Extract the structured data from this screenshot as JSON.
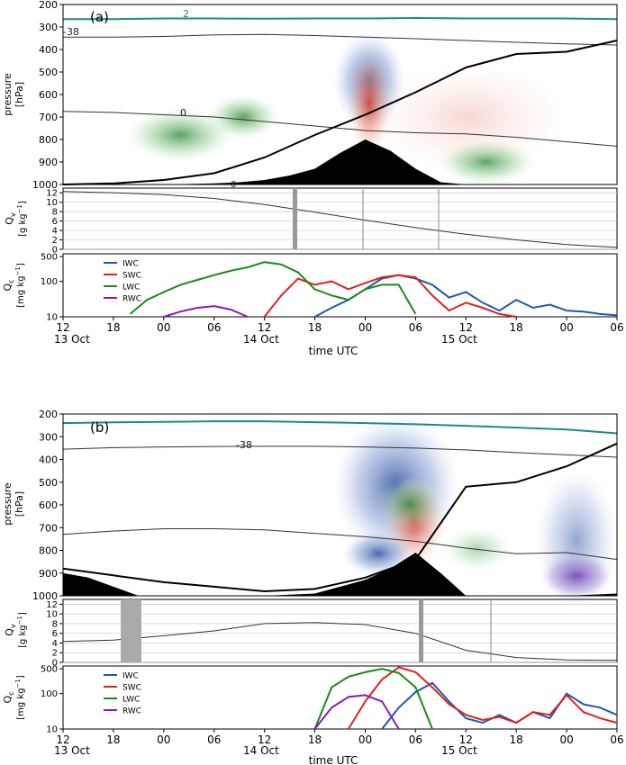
{
  "figure": {
    "panels": [
      {
        "label": "(a)",
        "time_ticks": [
          "12",
          "18",
          "00",
          "06",
          "12",
          "18",
          "00",
          "06",
          "12",
          "18",
          "00",
          "06"
        ],
        "date_labels": [
          "13 Oct",
          "14 Oct",
          "15 Oct"
        ],
        "time_label": "time UTC"
      },
      {
        "label": "(b)",
        "time_ticks": [
          "12",
          "18",
          "00",
          "06",
          "12",
          "18",
          "00",
          "06",
          "12",
          "18",
          "00",
          "06"
        ],
        "date_labels": [
          "13 Oct",
          "14 Oct",
          "15 Oct"
        ],
        "time_label": "time UTC"
      }
    ]
  },
  "chart_data": [
    {
      "type": "area",
      "panel": "(a) pressure-time section",
      "xlabel": "time UTC",
      "ylabel": "pressure [hPa]",
      "x_ticks": [
        "12",
        "18",
        "00",
        "06",
        "12",
        "18",
        "00",
        "06",
        "12",
        "18",
        "00",
        "06"
      ],
      "x_dates": [
        "13 Oct",
        "14 Oct",
        "15 Oct"
      ],
      "y_ticks": [
        200,
        300,
        400,
        500,
        600,
        700,
        800,
        900,
        1000
      ],
      "ylim": [
        1000,
        200
      ],
      "contour_labels": [
        "2",
        "-38",
        "0",
        "0"
      ],
      "series": [
        {
          "name": "",
          "color": "#1a8a8a",
          "x": [
            0,
            6,
            12,
            18,
            24,
            30,
            36,
            42,
            48,
            54,
            60,
            66
          ],
          "values": [
            265,
            265,
            262,
            262,
            263,
            262,
            262,
            260,
            262,
            262,
            262,
            265
          ]
        },
        {
          "name": "",
          "color": "#333333",
          "x": [
            0,
            6,
            12,
            18,
            24,
            30,
            36,
            42,
            48,
            54,
            60,
            66
          ],
          "values": [
            345,
            345,
            342,
            335,
            333,
            338,
            345,
            352,
            360,
            368,
            375,
            380
          ]
        },
        {
          "name": "",
          "color": "#333333",
          "x": [
            0,
            6,
            12,
            18,
            24,
            30,
            36,
            42,
            48,
            54,
            60,
            66
          ],
          "values": [
            675,
            680,
            690,
            700,
            720,
            740,
            760,
            770,
            775,
            790,
            810,
            830
          ]
        },
        {
          "name": "",
          "color": "#000000",
          "x": [
            0,
            6,
            12,
            18,
            24,
            30,
            36,
            42,
            48,
            54,
            60,
            66
          ],
          "values": [
            1000,
            995,
            980,
            950,
            880,
            780,
            690,
            590,
            480,
            420,
            410,
            360
          ]
        }
      ],
      "terrain": {
        "color": "#000000",
        "x": [
          0,
          12,
          18,
          21,
          24,
          27,
          30,
          33,
          36,
          39,
          42,
          45,
          48,
          54,
          60,
          66
        ],
        "values": [
          1000,
          1000,
          995,
          990,
          980,
          960,
          930,
          860,
          800,
          850,
          930,
          990,
          1000,
          1000,
          1000,
          1000
        ]
      }
    },
    {
      "type": "line",
      "panel": "(a) Qv",
      "ylabel": "Qv [g kg-1]",
      "y_ticks": [
        0,
        2,
        4,
        6,
        8,
        10,
        12
      ],
      "ylim": [
        0,
        13
      ],
      "series": [
        {
          "name": "",
          "color": "#333333",
          "x": [
            0,
            6,
            12,
            18,
            24,
            30,
            36,
            42,
            48,
            54,
            60,
            66
          ],
          "values": [
            12.3,
            12.0,
            11.6,
            10.8,
            9.5,
            7.9,
            6.2,
            4.6,
            3.2,
            2.0,
            1.0,
            0.4
          ]
        }
      ]
    },
    {
      "type": "line",
      "panel": "(a) Qc",
      "ylabel": "Qc [mg kg-1]",
      "y_scale": "log",
      "y_ticks": [
        10,
        100,
        500
      ],
      "ylim": [
        10,
        600
      ],
      "legend": [
        "IWC",
        "SWC",
        "LWC",
        "RWC"
      ],
      "legend_placement": "top-left",
      "series": [
        {
          "name": "IWC",
          "color": "#1f5aa6",
          "x": [
            30,
            32,
            34,
            36,
            38,
            40,
            42,
            44,
            46,
            48,
            50,
            52,
            54,
            56,
            58,
            60,
            62,
            64,
            66
          ],
          "values": [
            10,
            18,
            30,
            60,
            120,
            150,
            120,
            80,
            35,
            50,
            25,
            15,
            30,
            18,
            22,
            15,
            14,
            12,
            11
          ]
        },
        {
          "name": "SWC",
          "color": "#e02020",
          "x": [
            24,
            26,
            28,
            30,
            32,
            34,
            36,
            38,
            40,
            42,
            44,
            46,
            48,
            50,
            52,
            54
          ],
          "values": [
            10,
            40,
            120,
            80,
            100,
            60,
            90,
            130,
            150,
            130,
            40,
            15,
            25,
            18,
            12,
            10
          ]
        },
        {
          "name": "LWC",
          "color": "#1a8a1a",
          "x": [
            8,
            10,
            12,
            14,
            16,
            18,
            20,
            22,
            24,
            26,
            28,
            30,
            32,
            34,
            36,
            38,
            40,
            42
          ],
          "values": [
            12,
            30,
            50,
            80,
            110,
            150,
            200,
            250,
            350,
            300,
            180,
            60,
            40,
            30,
            60,
            80,
            80,
            12
          ]
        },
        {
          "name": "RWC",
          "color": "#8a1ab5",
          "x": [
            12,
            14,
            16,
            18,
            20,
            22
          ],
          "values": [
            10,
            14,
            18,
            20,
            16,
            10
          ]
        }
      ]
    },
    {
      "type": "area",
      "panel": "(b) pressure-time section",
      "xlabel": "time UTC",
      "ylabel": "pressure [hPa]",
      "x_ticks": [
        "12",
        "18",
        "00",
        "06",
        "12",
        "18",
        "00",
        "06",
        "12",
        "18",
        "00",
        "06"
      ],
      "x_dates": [
        "13 Oct",
        "14 Oct",
        "15 Oct"
      ],
      "y_ticks": [
        200,
        300,
        400,
        500,
        600,
        700,
        800,
        900,
        1000
      ],
      "ylim": [
        1000,
        200
      ],
      "contour_labels": [
        "-38"
      ],
      "series": [
        {
          "name": "",
          "color": "#1a8a8a",
          "x": [
            0,
            6,
            12,
            18,
            24,
            30,
            36,
            42,
            48,
            54,
            60,
            66
          ],
          "values": [
            240,
            237,
            235,
            232,
            232,
            236,
            240,
            245,
            252,
            260,
            268,
            285
          ]
        },
        {
          "name": "",
          "color": "#333333",
          "x": [
            0,
            6,
            12,
            18,
            24,
            30,
            36,
            42,
            48,
            54,
            60,
            66
          ],
          "values": [
            355,
            348,
            345,
            343,
            342,
            342,
            345,
            350,
            358,
            370,
            380,
            390
          ]
        },
        {
          "name": "",
          "color": "#333333",
          "x": [
            0,
            6,
            12,
            18,
            24,
            30,
            36,
            42,
            48,
            54,
            60,
            66
          ],
          "values": [
            730,
            715,
            705,
            705,
            710,
            725,
            740,
            760,
            790,
            815,
            810,
            840
          ]
        },
        {
          "name": "",
          "color": "#000000",
          "x": [
            0,
            6,
            12,
            18,
            24,
            30,
            36,
            42,
            48,
            54,
            60,
            66
          ],
          "values": [
            880,
            910,
            940,
            960,
            980,
            970,
            920,
            840,
            520,
            500,
            430,
            330
          ]
        }
      ],
      "terrain": {
        "color": "#000000",
        "x": [
          0,
          3,
          6,
          9,
          12,
          18,
          24,
          30,
          33,
          36,
          39,
          42,
          45,
          48,
          54,
          60,
          66
        ],
        "values": [
          900,
          920,
          960,
          1000,
          1000,
          1000,
          1000,
          990,
          960,
          930,
          880,
          810,
          900,
          1000,
          1000,
          1000,
          990
        ]
      }
    },
    {
      "type": "line",
      "panel": "(b) Qv",
      "ylabel": "Qv [g kg-1]",
      "y_ticks": [
        0,
        2,
        4,
        6,
        8,
        10,
        12
      ],
      "ylim": [
        0,
        13
      ],
      "series": [
        {
          "name": "",
          "color": "#333333",
          "x": [
            0,
            6,
            12,
            18,
            24,
            30,
            36,
            42,
            48,
            54,
            60,
            66
          ],
          "values": [
            4.3,
            4.6,
            5.5,
            6.5,
            8.0,
            8.2,
            7.8,
            6.0,
            2.5,
            1.0,
            0.5,
            0.4
          ]
        }
      ]
    },
    {
      "type": "line",
      "panel": "(b) Qc",
      "ylabel": "Qc [mg kg-1]",
      "y_scale": "log",
      "y_ticks": [
        10,
        100,
        500
      ],
      "ylim": [
        10,
        600
      ],
      "legend": [
        "IWC",
        "SWC",
        "LWC",
        "RWC"
      ],
      "legend_placement": "top-left",
      "series": [
        {
          "name": "IWC",
          "color": "#1f5aa6",
          "x": [
            38,
            40,
            42,
            44,
            46,
            48,
            50,
            52,
            54,
            56,
            58,
            60,
            62,
            64,
            66
          ],
          "values": [
            10,
            40,
            110,
            200,
            60,
            20,
            15,
            25,
            15,
            30,
            20,
            100,
            50,
            40,
            25
          ]
        },
        {
          "name": "SWC",
          "color": "#e02020",
          "x": [
            34,
            36,
            38,
            40,
            42,
            44,
            46,
            48,
            50,
            52,
            54,
            56,
            58,
            60,
            62,
            64,
            66
          ],
          "values": [
            10,
            60,
            250,
            550,
            400,
            150,
            50,
            25,
            18,
            22,
            15,
            30,
            25,
            90,
            30,
            20,
            15
          ]
        },
        {
          "name": "LWC",
          "color": "#1a8a1a",
          "x": [
            30,
            32,
            34,
            36,
            38,
            40,
            42,
            44
          ],
          "values": [
            10,
            150,
            300,
            400,
            500,
            380,
            150,
            10
          ]
        },
        {
          "name": "RWC",
          "color": "#8a1ab5",
          "x": [
            30,
            32,
            34,
            36,
            38,
            40
          ],
          "values": [
            10,
            40,
            80,
            90,
            60,
            10
          ]
        }
      ]
    }
  ]
}
